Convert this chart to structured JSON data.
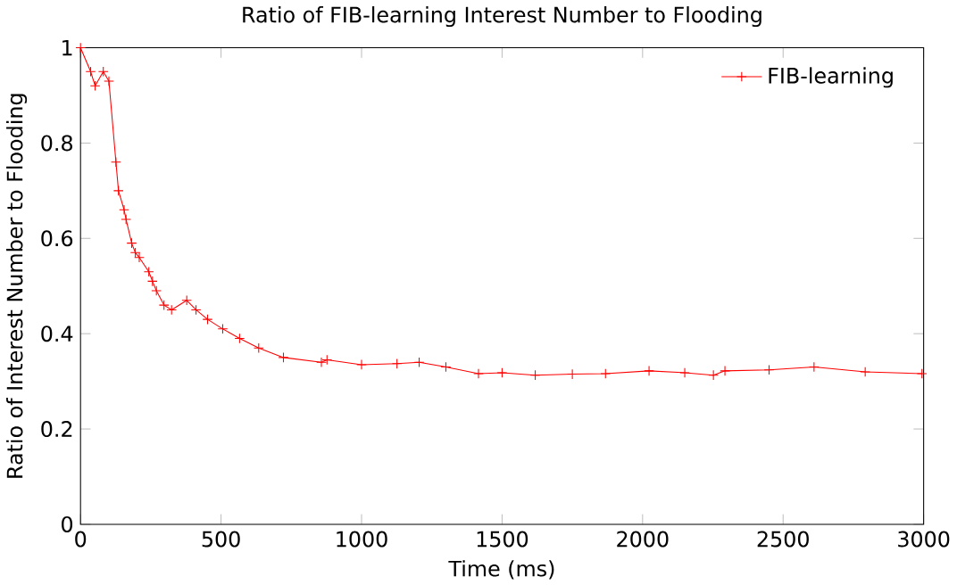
{
  "chart_data": {
    "type": "line",
    "title": "Ratio of FIB-learning Interest Number to Flooding",
    "xlabel": "Time (ms)",
    "ylabel": "Ratio of Interest Number to Flooding",
    "xlim": [
      0,
      3000
    ],
    "ylim": [
      0,
      1
    ],
    "xticks": [
      0,
      500,
      1000,
      1500,
      2000,
      2500,
      3000
    ],
    "yticks": [
      0,
      0.2,
      0.4,
      0.6,
      0.8,
      1
    ],
    "marker": "cross",
    "legend": "top right",
    "grid": false,
    "series": [
      {
        "name": "FIB-learning",
        "color": "#ff0000",
        "x": [
          0,
          36,
          52,
          81,
          101,
          126,
          135,
          155,
          162,
          182,
          195,
          209,
          243,
          256,
          270,
          297,
          324,
          378,
          411,
          452,
          506,
          566,
          634,
          722,
          857,
          877,
          1000,
          1126,
          1205,
          1300,
          1416,
          1500,
          1618,
          1750,
          1868,
          2023,
          2150,
          2252,
          2293,
          2450,
          2610,
          2792,
          2994
        ],
        "values": [
          1,
          0.95,
          0.92,
          0.95,
          0.93,
          0.76,
          0.7,
          0.66,
          0.64,
          0.59,
          0.57,
          0.56,
          0.53,
          0.51,
          0.49,
          0.46,
          0.45,
          0.47,
          0.45,
          0.43,
          0.41,
          0.39,
          0.37,
          0.35,
          0.34,
          0.345,
          0.335,
          0.337,
          0.34,
          0.33,
          0.316,
          0.318,
          0.313,
          0.315,
          0.316,
          0.322,
          0.318,
          0.313,
          0.322,
          0.324,
          0.33,
          0.32,
          0.316
        ]
      }
    ]
  }
}
